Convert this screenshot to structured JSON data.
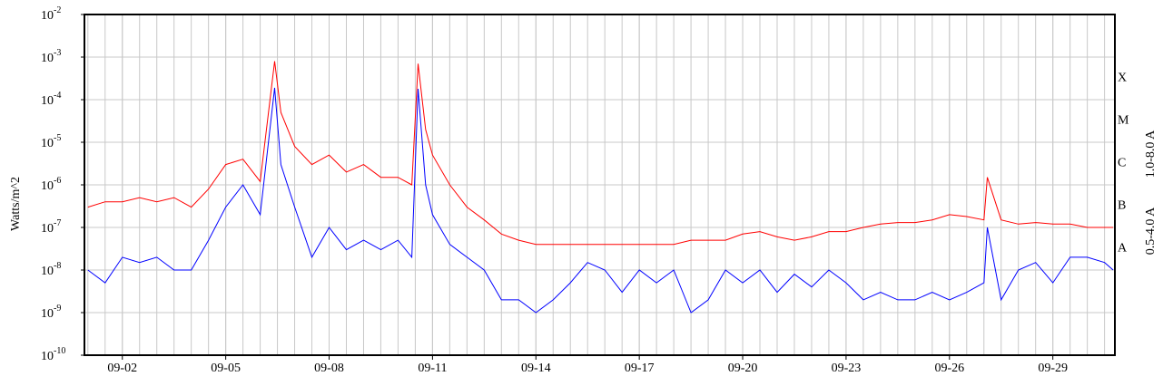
{
  "chart_data": {
    "type": "line",
    "y_label": "Watts/m^2",
    "log_y": true,
    "grid": true,
    "xlim": [
      0.9,
      30.8
    ],
    "ylim": [
      1e-10,
      0.01
    ],
    "xticks": [
      {
        "value": 2,
        "label": "09-02"
      },
      {
        "value": 5,
        "label": "09-05"
      },
      {
        "value": 8,
        "label": "09-08"
      },
      {
        "value": 11,
        "label": "09-11"
      },
      {
        "value": 14,
        "label": "09-14"
      },
      {
        "value": 17,
        "label": "09-17"
      },
      {
        "value": 20,
        "label": "09-20"
      },
      {
        "value": 23,
        "label": "09-23"
      },
      {
        "value": 26,
        "label": "09-26"
      },
      {
        "value": 29,
        "label": "09-29"
      }
    ],
    "yticks": [
      {
        "value": 0.01,
        "label": "10",
        "exponent": "-2"
      },
      {
        "value": 0.001,
        "label": "10",
        "exponent": "-3"
      },
      {
        "value": 0.0001,
        "label": "10",
        "exponent": "-4"
      },
      {
        "value": 1e-05,
        "label": "10",
        "exponent": "-5"
      },
      {
        "value": 1e-06,
        "label": "10",
        "exponent": "-6"
      },
      {
        "value": 1e-07,
        "label": "10",
        "exponent": "-7"
      },
      {
        "value": 1e-08,
        "label": "10",
        "exponent": "-8"
      },
      {
        "value": 1e-09,
        "label": "10",
        "exponent": "-9"
      },
      {
        "value": 1e-10,
        "label": "10",
        "exponent": "-10"
      }
    ],
    "class_labels": [
      {
        "label": "X",
        "value": 0.0001
      },
      {
        "label": "M",
        "value": 1e-05
      },
      {
        "label": "C",
        "value": 1e-06
      },
      {
        "label": "B",
        "value": 1e-07
      },
      {
        "label": "A",
        "value": 1e-08
      }
    ],
    "x": [
      1,
      1.5,
      2,
      2.5,
      3,
      3.5,
      4,
      4.5,
      5,
      5.5,
      6,
      6.42,
      6.6,
      7,
      7.5,
      8,
      8.5,
      9,
      9.5,
      10,
      10.4,
      10.58,
      10.8,
      11,
      11.5,
      12,
      12.5,
      13,
      13.5,
      14,
      14.5,
      15,
      15.5,
      16,
      16.5,
      17,
      17.5,
      18,
      18.5,
      19,
      19.5,
      20,
      20.5,
      21,
      21.5,
      22,
      22.5,
      23,
      23.5,
      24,
      24.5,
      25,
      25.5,
      26,
      26.5,
      27,
      27.1,
      27.5,
      28,
      28.5,
      29,
      29.5,
      30,
      30.5,
      30.75
    ],
    "series": [
      {
        "name": "1.0-8.0 A",
        "color": "#ff0000",
        "values": [
          3e-07,
          4e-07,
          4e-07,
          5e-07,
          4e-07,
          5e-07,
          3e-07,
          8e-07,
          3e-06,
          4e-06,
          1.2e-06,
          0.0008,
          5e-05,
          8e-06,
          3e-06,
          5e-06,
          2e-06,
          3e-06,
          1.5e-06,
          1.5e-06,
          1e-06,
          0.0007,
          2e-05,
          5e-06,
          1e-06,
          3e-07,
          1.5e-07,
          7e-08,
          5e-08,
          4e-08,
          4e-08,
          4e-08,
          4e-08,
          4e-08,
          4e-08,
          4e-08,
          4e-08,
          4e-08,
          5e-08,
          5e-08,
          5e-08,
          7e-08,
          8e-08,
          6e-08,
          5e-08,
          6e-08,
          8e-08,
          8e-08,
          1e-07,
          1.2e-07,
          1.3e-07,
          1.3e-07,
          1.5e-07,
          2e-07,
          1.8e-07,
          1.5e-07,
          1.5e-06,
          1.5e-07,
          1.2e-07,
          1.3e-07,
          1.2e-07,
          1.2e-07,
          1e-07,
          1e-07,
          1e-07
        ]
      },
      {
        "name": "0.5-4.0 A",
        "color": "#0000ff",
        "values": [
          1e-08,
          5e-09,
          2e-08,
          1.5e-08,
          2e-08,
          1e-08,
          1e-08,
          5e-08,
          3e-07,
          1e-06,
          2e-07,
          0.00019,
          3e-06,
          3e-07,
          2e-08,
          1e-07,
          3e-08,
          5e-08,
          3e-08,
          5e-08,
          2e-08,
          0.00018,
          1e-06,
          2e-07,
          4e-08,
          2e-08,
          1e-08,
          2e-09,
          2e-09,
          1e-09,
          2e-09,
          5e-09,
          1.5e-08,
          1e-08,
          3e-09,
          1e-08,
          5e-09,
          1e-08,
          1e-09,
          2e-09,
          1e-08,
          5e-09,
          1e-08,
          3e-09,
          8e-09,
          4e-09,
          1e-08,
          5e-09,
          2e-09,
          3e-09,
          2e-09,
          2e-09,
          3e-09,
          2e-09,
          3e-09,
          5e-09,
          1e-07,
          2e-09,
          1e-08,
          1.5e-08,
          5e-09,
          2e-08,
          2e-08,
          1.5e-08,
          1e-08
        ]
      }
    ]
  }
}
